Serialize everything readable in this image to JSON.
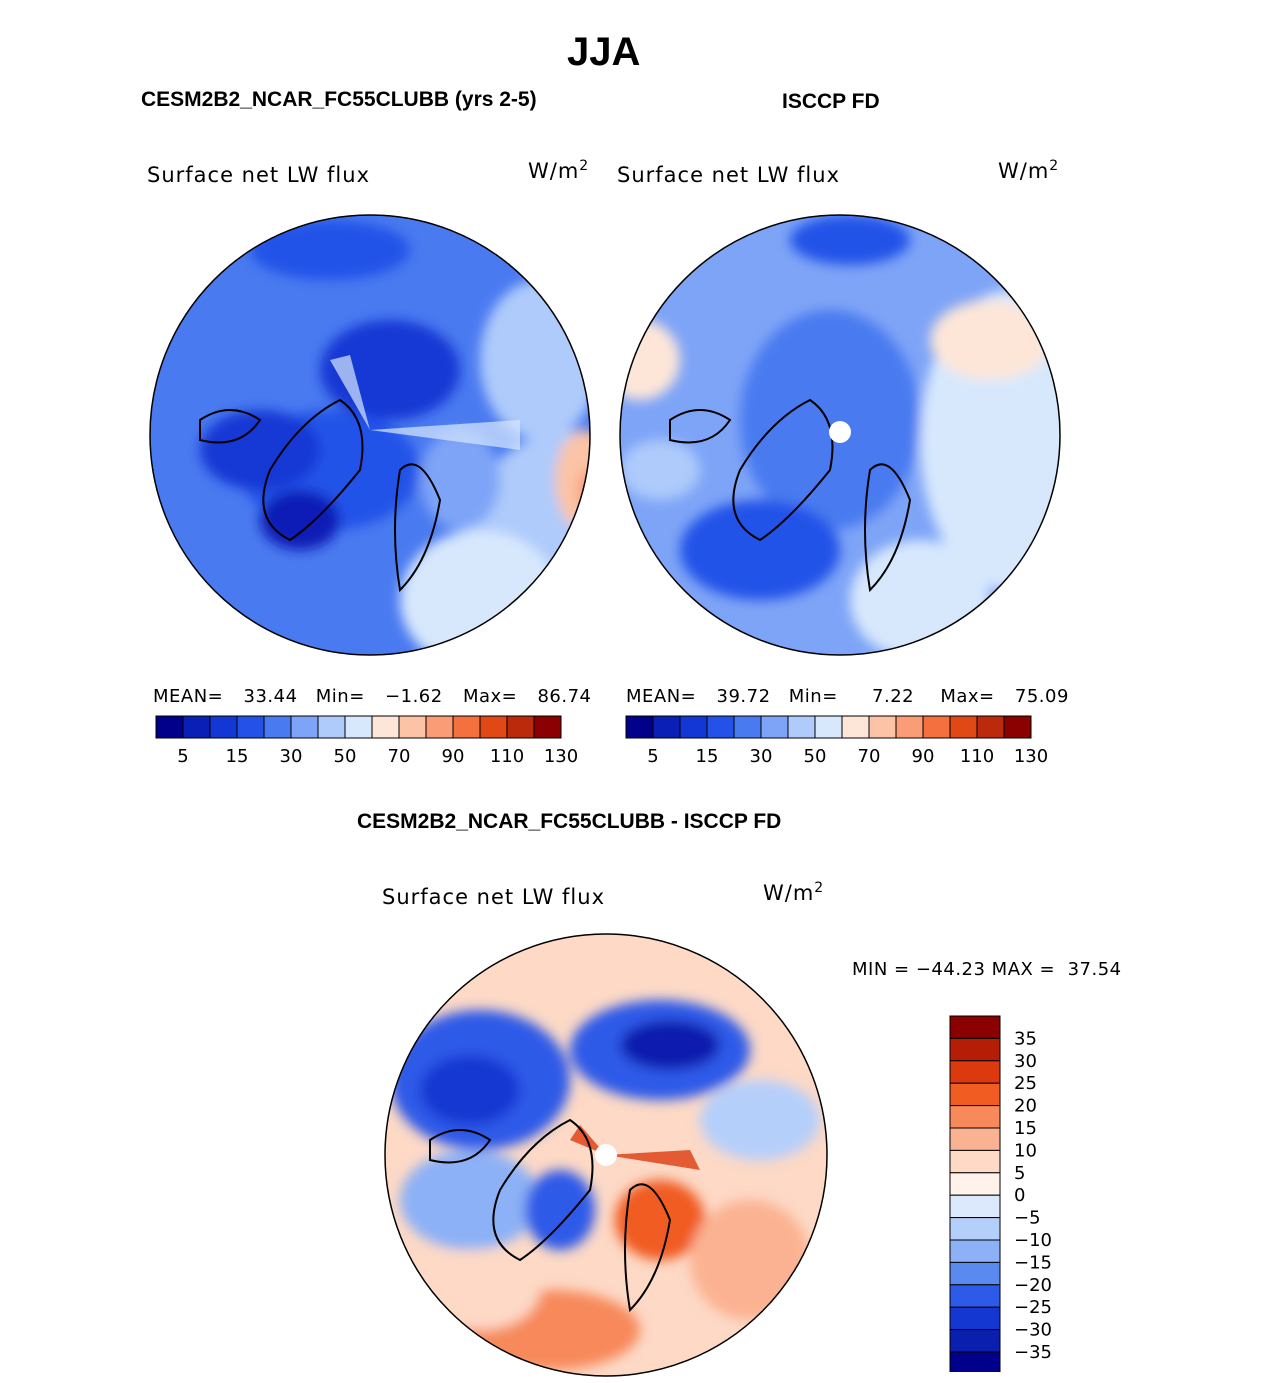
{
  "figure": {
    "title": "JJA",
    "model_title": "CESM2B2_NCAR_FC55CLUBB (yrs 2-5)",
    "obs_title": "ISCCP FD",
    "diff_title": "CESM2B2_NCAR_FC55CLUBB - ISCCP FD"
  },
  "panels": {
    "model": {
      "label": "Surface net LW flux",
      "units_base": "W/m",
      "units_exp": "2",
      "mean_label": "MEAN=",
      "mean": "33.44",
      "min_label": "Min=",
      "min": "−1.62",
      "max_label": "Max=",
      "max": "86.74"
    },
    "obs": {
      "label": "Surface net LW flux",
      "units_base": "W/m",
      "units_exp": "2",
      "mean_label": "MEAN=",
      "mean": "39.72",
      "min_label": "Min=",
      "min": "7.22",
      "max_label": "Max=",
      "max": "75.09"
    },
    "diff": {
      "label": "Surface net LW flux",
      "units_base": "W/m",
      "units_exp": "2",
      "minmax_text": "MIN = −44.23 MAX =  37.54"
    }
  },
  "colorbar_main": {
    "colors": [
      "#00008b",
      "#0a1fb6",
      "#1337d4",
      "#2452e8",
      "#4a7af0",
      "#7ea4f7",
      "#aecbfb",
      "#d7e8fd",
      "#fde6d8",
      "#fcc3a6",
      "#fa9c76",
      "#f4703f",
      "#e04916",
      "#bb2a0a",
      "#8b0000"
    ],
    "tick_labels": [
      "5",
      "15",
      "30",
      "50",
      "70",
      "90",
      "110",
      "130"
    ]
  },
  "colorbar_diff": {
    "colors": [
      "#8b0000",
      "#b51d07",
      "#dc3a0e",
      "#f05c22",
      "#f7895a",
      "#fbb292",
      "#fdd9c6",
      "#fef2ea",
      "#dce9fd",
      "#b5cffb",
      "#8cb1f6",
      "#5a89ef",
      "#2d5ae8",
      "#1437d2",
      "#0a1fae",
      "#00008b"
    ],
    "tick_labels": [
      "35",
      "30",
      "25",
      "20",
      "15",
      "10",
      "5",
      "0",
      "−5",
      "−10",
      "−15",
      "−20",
      "−25",
      "−30",
      "−35"
    ]
  },
  "chart_data": [
    {
      "type": "heatmap",
      "title": "Surface net LW flux",
      "subtitle": "CESM2B2_NCAR_FC55CLUBB (yrs 2-5)",
      "units": "W/m2",
      "projection": "north polar stereographic",
      "levels": [
        5,
        10,
        15,
        20,
        30,
        40,
        50,
        60,
        70,
        80,
        90,
        100,
        110,
        120,
        130
      ],
      "mean": 33.44,
      "min": -1.62,
      "max": 86.74
    },
    {
      "type": "heatmap",
      "title": "Surface net LW flux",
      "subtitle": "ISCCP FD",
      "units": "W/m2",
      "projection": "north polar stereographic",
      "levels": [
        5,
        10,
        15,
        20,
        30,
        40,
        50,
        60,
        70,
        80,
        90,
        100,
        110,
        120,
        130
      ],
      "mean": 39.72,
      "min": 7.22,
      "max": 75.09
    },
    {
      "type": "heatmap",
      "title": "Surface net LW flux",
      "subtitle": "CESM2B2_NCAR_FC55CLUBB - ISCCP FD",
      "units": "W/m2",
      "projection": "north polar stereographic",
      "levels": [
        -35,
        -30,
        -25,
        -20,
        -15,
        -10,
        -5,
        0,
        5,
        10,
        15,
        20,
        25,
        30,
        35
      ],
      "min": -44.23,
      "max": 37.54
    }
  ]
}
